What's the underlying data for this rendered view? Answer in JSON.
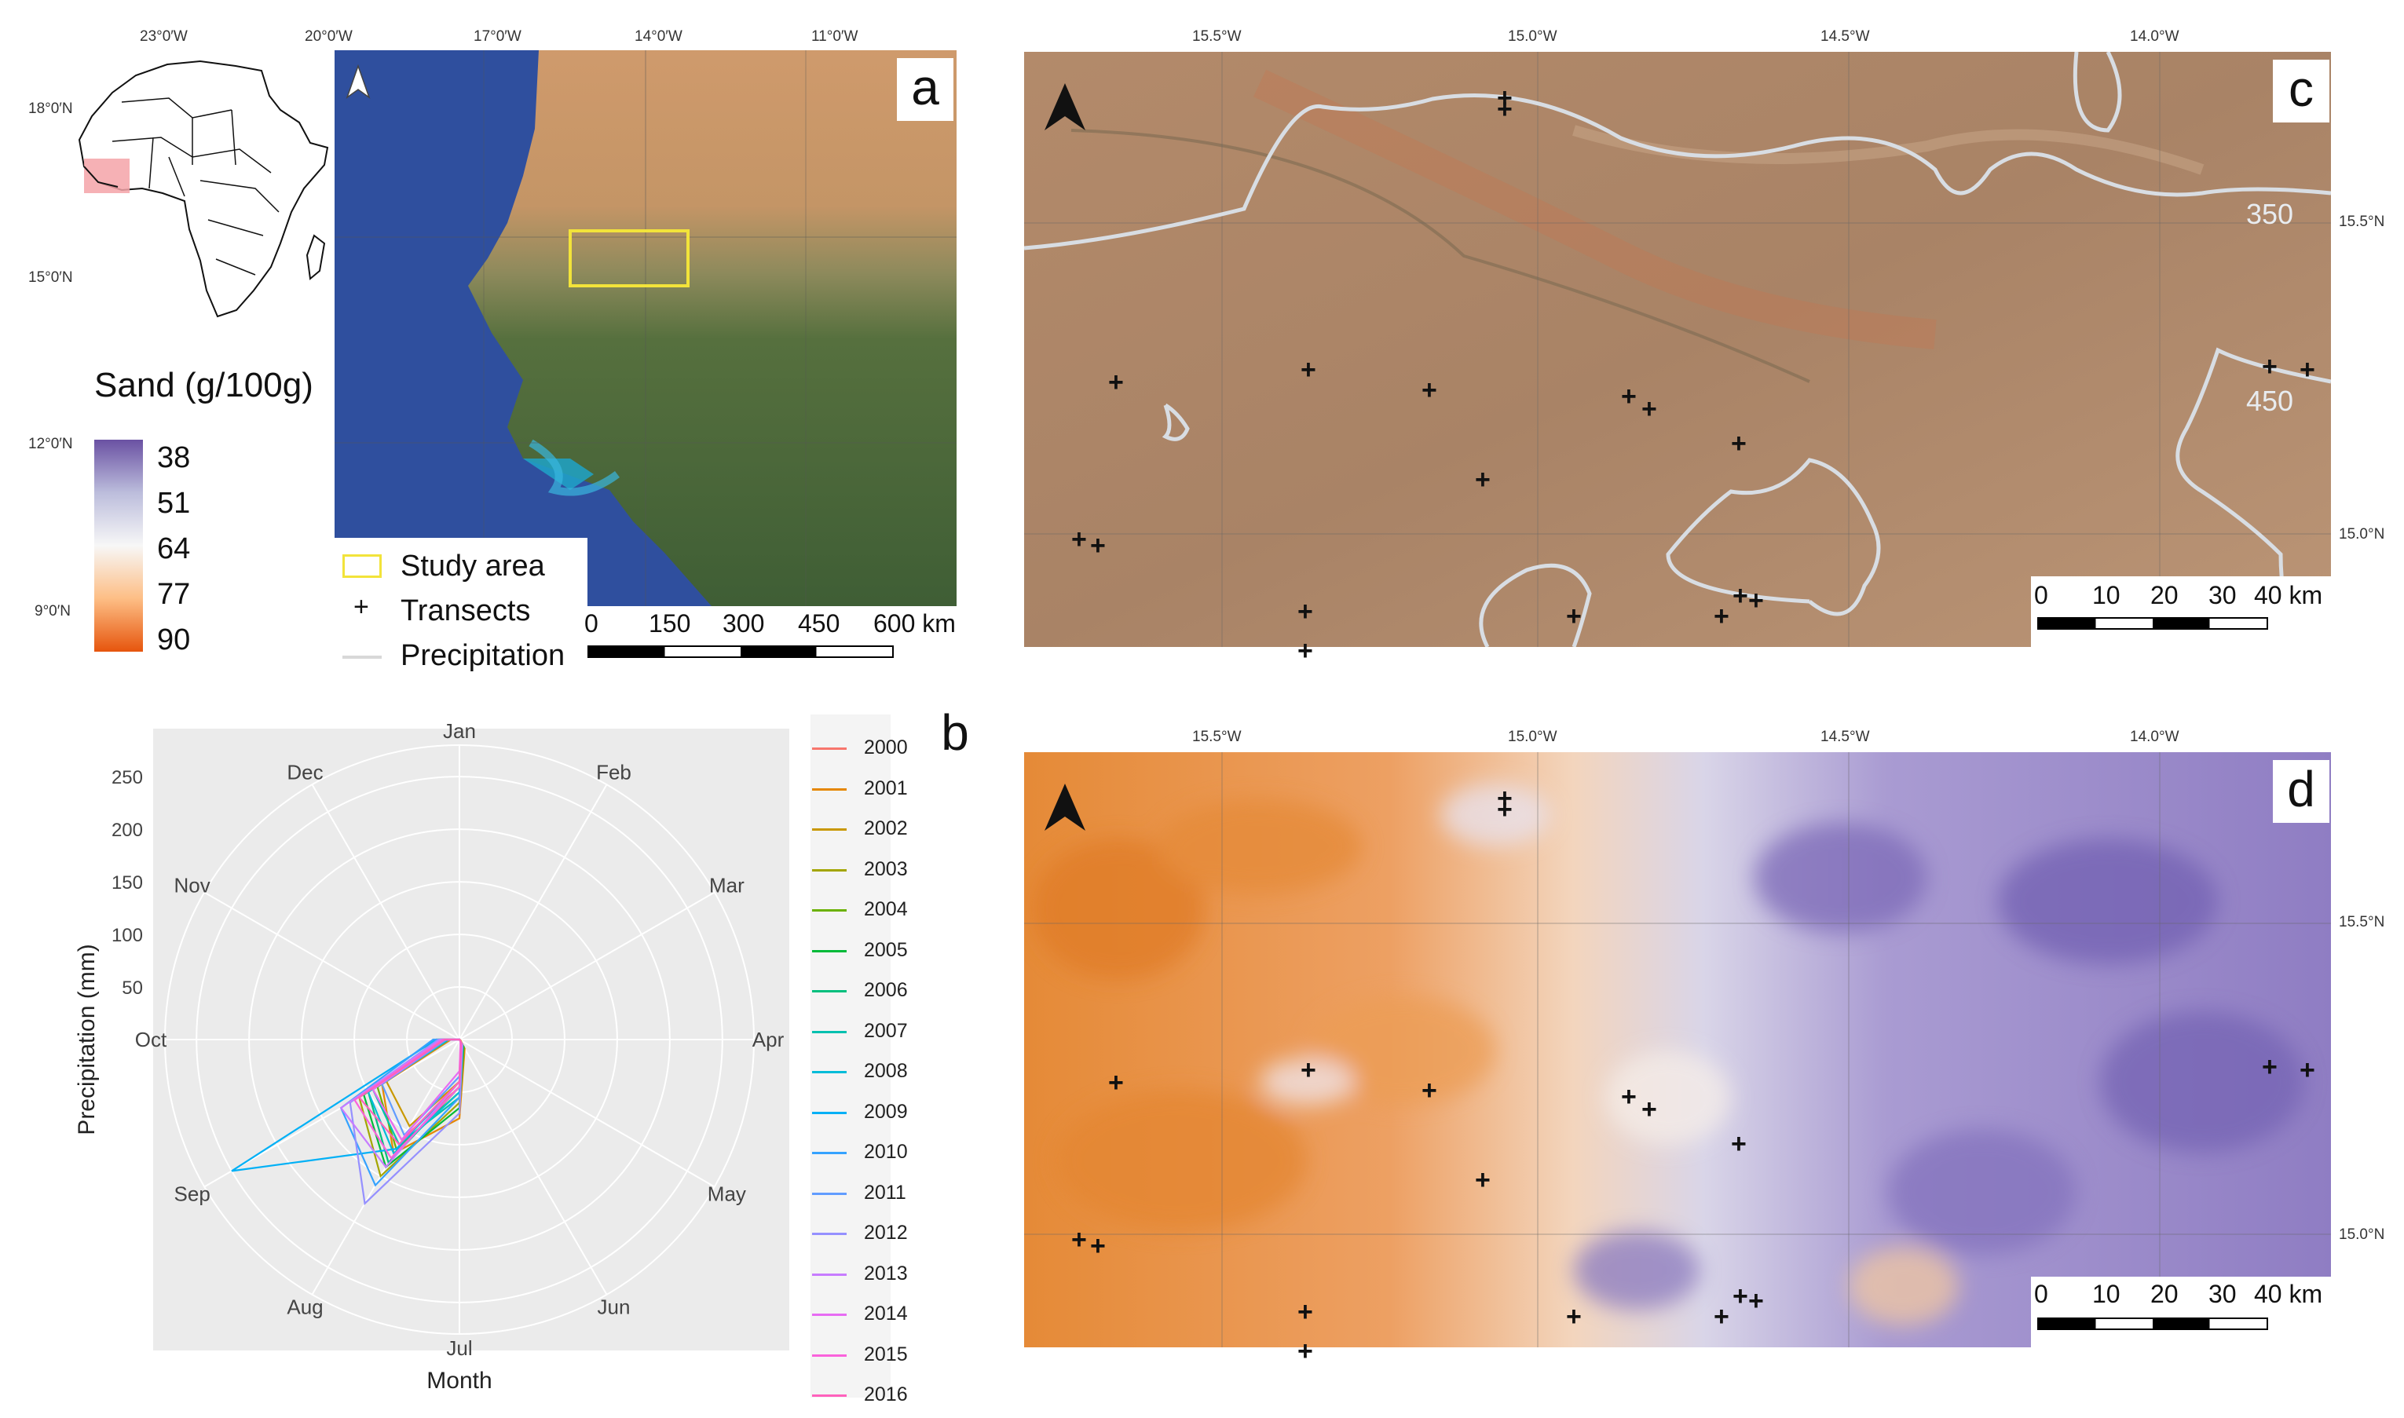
{
  "panel_a": {
    "letter": "a",
    "inset_lon": [
      "23°0′W",
      "20°0′W",
      "17°0′W",
      "14°0′W",
      "11°0′W"
    ],
    "inset_lat": [
      "18°0′N",
      "15°0′N",
      "12°0′N",
      "9°0′N"
    ],
    "legend_title": "Sand (g/100g)",
    "colorbar_ticks": [
      "38",
      "51",
      "64",
      "77",
      "90"
    ],
    "legend_items": [
      "Study area",
      "Transects",
      "Precipitation"
    ],
    "scalebar": [
      "0",
      "150",
      "300",
      "450",
      "600 km"
    ],
    "colors": {
      "ocean": "#2f4f9e",
      "desert": "#c99b70",
      "vegetation": "#4e6a3e",
      "study_area": "#f2e33a"
    }
  },
  "panel_b": {
    "letter": "b",
    "chart_data": {
      "type": "polar-line",
      "title": "",
      "xlabel": "Month",
      "ylabel": "Precipitation (mm)",
      "months": [
        "Jan",
        "Feb",
        "Mar",
        "Apr",
        "May",
        "Jun",
        "Jul",
        "Aug",
        "Sep",
        "Oct",
        "Nov",
        "Dec"
      ],
      "radial_ticks": [
        50,
        100,
        150,
        200,
        250
      ],
      "rlim": [
        0,
        280
      ],
      "series": [
        {
          "name": "2000",
          "color": "#f8766d",
          "values": [
            0,
            0,
            0,
            0,
            0,
            2,
            45,
            110,
            95,
            10,
            0,
            0
          ]
        },
        {
          "name": "2001",
          "color": "#e58700",
          "values": [
            0,
            0,
            0,
            0,
            1,
            10,
            75,
            125,
            85,
            8,
            0,
            0
          ]
        },
        {
          "name": "2002",
          "color": "#c99800",
          "values": [
            0,
            0,
            0,
            0,
            0,
            4,
            40,
            95,
            80,
            22,
            0,
            0
          ]
        },
        {
          "name": "2003",
          "color": "#a3a500",
          "values": [
            0,
            0,
            0,
            0,
            0,
            6,
            60,
            150,
            110,
            18,
            0,
            0
          ]
        },
        {
          "name": "2004",
          "color": "#6bb100",
          "values": [
            0,
            0,
            0,
            0,
            0,
            5,
            50,
            120,
            90,
            12,
            0,
            0
          ]
        },
        {
          "name": "2005",
          "color": "#00ba38",
          "values": [
            0,
            0,
            0,
            0,
            0,
            8,
            65,
            140,
            105,
            15,
            0,
            0
          ]
        },
        {
          "name": "2006",
          "color": "#00bf7d",
          "values": [
            0,
            0,
            0,
            0,
            0,
            3,
            45,
            135,
            100,
            20,
            0,
            0
          ]
        },
        {
          "name": "2007",
          "color": "#00c0af",
          "values": [
            0,
            0,
            0,
            0,
            0,
            4,
            55,
            115,
            95,
            10,
            0,
            0
          ]
        },
        {
          "name": "2008",
          "color": "#00bcd8",
          "values": [
            0,
            0,
            0,
            0,
            0,
            6,
            50,
            125,
            100,
            16,
            0,
            0
          ]
        },
        {
          "name": "2009",
          "color": "#00b0f6",
          "values": [
            0,
            0,
            0,
            0,
            0,
            4,
            40,
            120,
            250,
            22,
            0,
            0
          ]
        },
        {
          "name": "2010",
          "color": "#35a2ff",
          "values": [
            0,
            0,
            0,
            0,
            0,
            5,
            55,
            160,
            130,
            25,
            0,
            0
          ]
        },
        {
          "name": "2011",
          "color": "#619cff",
          "values": [
            0,
            0,
            0,
            0,
            0,
            3,
            35,
            105,
            85,
            12,
            0,
            0
          ]
        },
        {
          "name": "2012",
          "color": "#9590ff",
          "values": [
            0,
            0,
            0,
            0,
            0,
            6,
            70,
            180,
            120,
            20,
            0,
            0
          ]
        },
        {
          "name": "2013",
          "color": "#c77cff",
          "values": [
            0,
            0,
            0,
            0,
            0,
            3,
            40,
            140,
            130,
            18,
            0,
            0
          ]
        },
        {
          "name": "2014",
          "color": "#e76bf3",
          "values": [
            0,
            0,
            0,
            0,
            0,
            2,
            30,
            110,
            95,
            14,
            0,
            0
          ]
        },
        {
          "name": "2015",
          "color": "#fa62db",
          "values": [
            0,
            0,
            0,
            0,
            0,
            4,
            45,
            130,
            115,
            16,
            0,
            0
          ]
        },
        {
          "name": "2016",
          "color": "#ff62bc",
          "values": [
            0,
            0,
            0,
            0,
            0,
            3,
            40,
            115,
            110,
            14,
            0,
            0
          ]
        }
      ]
    }
  },
  "panel_c": {
    "letter": "c",
    "lon_ticks": [
      "15.5°W",
      "15.0°W",
      "14.5°W",
      "14.0°W"
    ],
    "lat_ticks": [
      "15.5°N",
      "15.0°N"
    ],
    "isohyets": [
      "350",
      "450"
    ],
    "scalebar": [
      "0",
      "10",
      "20",
      "30",
      "40 km"
    ]
  },
  "panel_d": {
    "letter": "d",
    "lon_ticks": [
      "15.5°W",
      "15.0°W",
      "14.5°W",
      "14.0°W"
    ],
    "lat_ticks": [
      "15.5°N",
      "15.0°N"
    ],
    "scalebar": [
      "0",
      "10",
      "20",
      "30",
      "40 km"
    ]
  }
}
